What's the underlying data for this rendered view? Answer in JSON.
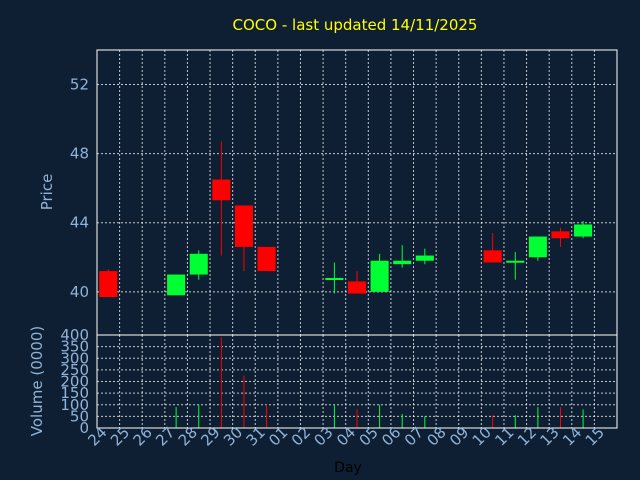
{
  "colors": {
    "background": "#0f1f33",
    "up": "#00ff33",
    "down": "#ff0000",
    "title": "#ffff00",
    "axis_text": "#8fb3d9",
    "grid": "#ffffff"
  },
  "chart_data": [
    {
      "type": "candlestick",
      "title": "COCO - last updated 14/11/2025",
      "ylabel": "Price",
      "ylim": [
        37.5,
        54
      ],
      "yticks": [
        40,
        44,
        48,
        52
      ],
      "grid": true,
      "categories": [
        "24",
        "25",
        "26",
        "27",
        "28",
        "29",
        "30",
        "31",
        "01",
        "02",
        "03",
        "04",
        "05",
        "06",
        "07",
        "08",
        "09",
        "10",
        "11",
        "12",
        "13",
        "14",
        "15"
      ],
      "candles": [
        {
          "day": "24",
          "open": 41.2,
          "high": 41.3,
          "low": 39.7,
          "close": 39.7
        },
        {
          "day": "27",
          "open": 39.8,
          "high": 41.0,
          "low": 39.8,
          "close": 41.0
        },
        {
          "day": "28",
          "open": 41.0,
          "high": 42.4,
          "low": 40.7,
          "close": 42.2
        },
        {
          "day": "29",
          "open": 46.5,
          "high": 48.7,
          "low": 42.1,
          "close": 45.3
        },
        {
          "day": "30",
          "open": 45.0,
          "high": 45.0,
          "low": 41.2,
          "close": 42.6
        },
        {
          "day": "31",
          "open": 42.6,
          "high": 42.6,
          "low": 41.2,
          "close": 41.2
        },
        {
          "day": "03",
          "open": 40.8,
          "high": 41.7,
          "low": 39.9,
          "close": 40.8
        },
        {
          "day": "04",
          "open": 40.6,
          "high": 41.2,
          "low": 39.9,
          "close": 39.9
        },
        {
          "day": "05",
          "open": 40.0,
          "high": 42.2,
          "low": 40.0,
          "close": 41.8
        },
        {
          "day": "06",
          "open": 41.6,
          "high": 42.7,
          "low": 41.4,
          "close": 41.8
        },
        {
          "day": "07",
          "open": 41.8,
          "high": 42.5,
          "low": 41.6,
          "close": 42.1
        },
        {
          "day": "10",
          "open": 42.4,
          "high": 43.4,
          "low": 41.7,
          "close": 41.7
        },
        {
          "day": "11",
          "open": 41.8,
          "high": 42.3,
          "low": 40.7,
          "close": 41.8
        },
        {
          "day": "12",
          "open": 42.0,
          "high": 43.2,
          "low": 41.8,
          "close": 43.2
        },
        {
          "day": "13",
          "open": 43.5,
          "high": 43.7,
          "low": 42.6,
          "close": 43.1
        },
        {
          "day": "14",
          "open": 43.2,
          "high": 44.1,
          "low": 43.1,
          "close": 43.9
        }
      ]
    },
    {
      "type": "bar",
      "ylabel": "Volume (0000)",
      "xlabel": "Day",
      "ylim": [
        0,
        400
      ],
      "yticks": [
        0,
        50,
        100,
        150,
        200,
        250,
        300,
        350,
        400
      ],
      "grid": true,
      "categories": [
        "24",
        "25",
        "26",
        "27",
        "28",
        "29",
        "30",
        "31",
        "01",
        "02",
        "03",
        "04",
        "05",
        "06",
        "07",
        "08",
        "09",
        "10",
        "11",
        "12",
        "13",
        "14",
        "15"
      ],
      "volumes": [
        {
          "day": "24",
          "value": 0,
          "direction": "down"
        },
        {
          "day": "27",
          "value": 90,
          "direction": "up"
        },
        {
          "day": "28",
          "value": 100,
          "direction": "up"
        },
        {
          "day": "29",
          "value": 390,
          "direction": "down"
        },
        {
          "day": "30",
          "value": 225,
          "direction": "down"
        },
        {
          "day": "31",
          "value": 100,
          "direction": "down"
        },
        {
          "day": "03",
          "value": 100,
          "direction": "up"
        },
        {
          "day": "04",
          "value": 80,
          "direction": "down"
        },
        {
          "day": "05",
          "value": 100,
          "direction": "up"
        },
        {
          "day": "06",
          "value": 60,
          "direction": "up"
        },
        {
          "day": "07",
          "value": 50,
          "direction": "up"
        },
        {
          "day": "10",
          "value": 55,
          "direction": "down"
        },
        {
          "day": "11",
          "value": 55,
          "direction": "up"
        },
        {
          "day": "12",
          "value": 90,
          "direction": "up"
        },
        {
          "day": "13",
          "value": 90,
          "direction": "down"
        },
        {
          "day": "14",
          "value": 80,
          "direction": "up"
        }
      ]
    }
  ]
}
